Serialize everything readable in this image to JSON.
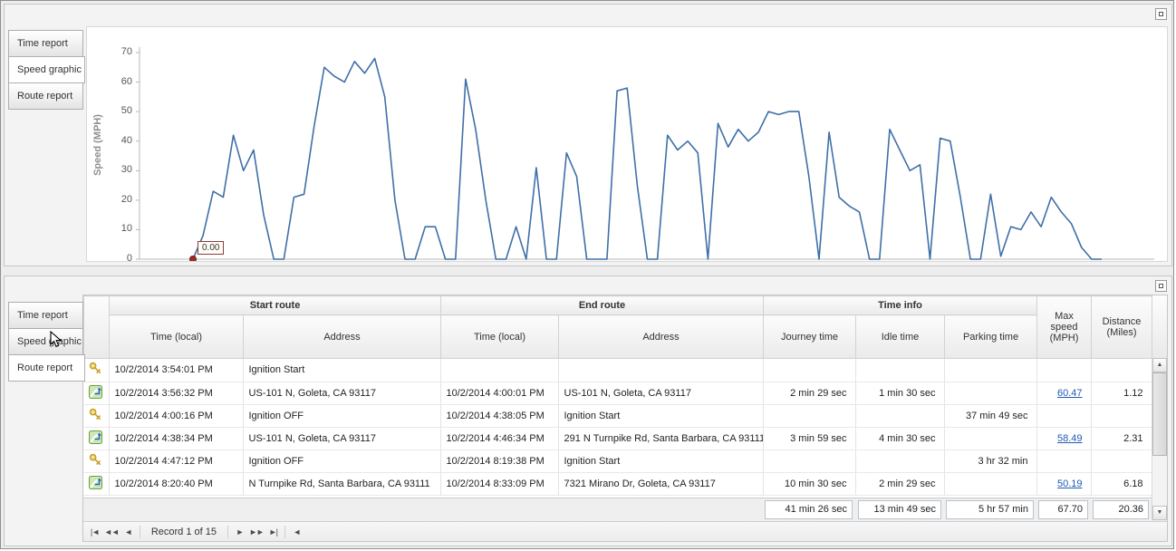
{
  "colors": {
    "chart_line": "#3f6fa8",
    "marker_red": "#9e2b25",
    "max_speed_link": "#1f5bb5"
  },
  "chart_data": {
    "type": "line",
    "title": "",
    "xlabel": "",
    "ylabel": "Speed (MPH)",
    "ylim": [
      0,
      70
    ],
    "yticks": [
      0,
      10,
      20,
      30,
      40,
      50,
      60,
      70
    ],
    "legend": "none",
    "grid": "off",
    "series": [
      {
        "name": "Speed",
        "color": "#3f6fa8",
        "values": [
          0,
          8,
          23,
          21,
          42,
          30,
          37,
          15,
          0,
          0,
          21,
          22,
          45,
          65,
          62,
          60,
          67,
          63,
          68,
          55,
          20,
          0,
          0,
          11,
          11,
          0,
          0,
          61,
          44,
          20,
          0,
          0,
          11,
          0,
          31,
          0,
          0,
          36,
          28,
          0,
          0,
          0,
          57,
          58,
          25,
          0,
          0,
          42,
          37,
          40,
          36,
          0,
          46,
          38,
          44,
          40,
          43,
          50,
          49,
          50,
          50,
          28,
          0,
          43,
          21,
          18,
          16,
          0,
          0,
          44,
          37,
          30,
          32,
          0,
          41,
          40,
          21,
          0,
          0,
          22,
          1,
          11,
          10,
          16,
          11,
          21,
          16,
          12,
          4,
          0,
          0
        ]
      }
    ],
    "annotation": {
      "label": "0.00",
      "point_index": 0,
      "marker_color": "#9e2b25"
    }
  },
  "top_panel": {
    "active_tab": "Speed graphic",
    "tabs": [
      {
        "label": "Time report"
      },
      {
        "label": "Speed graphic"
      },
      {
        "label": "Route report"
      }
    ]
  },
  "bottom_panel": {
    "active_tab": "Route report",
    "tabs": [
      {
        "label": "Time report"
      },
      {
        "label": "Speed graphic"
      },
      {
        "label": "Route report"
      }
    ],
    "grid": {
      "groups": [
        "Start route",
        "End route",
        "Time info"
      ],
      "columns": {
        "time_local": "Time (local)",
        "address": "Address",
        "journey": "Journey time",
        "idle": "Idle time",
        "parking": "Parking time",
        "max_speed": "Max speed (MPH)",
        "distance": "Distance (Miles)"
      },
      "rows": [
        {
          "icon": "key",
          "start_time": "10/2/2014 3:54:01 PM",
          "start_address": "Ignition Start",
          "end_time": "",
          "end_address": "",
          "journey": "",
          "idle": "",
          "parking": "",
          "max_speed": "",
          "distance": ""
        },
        {
          "icon": "route",
          "start_time": "10/2/2014 3:56:32 PM",
          "start_address": "US-101 N, Goleta, CA 93117",
          "end_time": "10/2/2014 4:00:01 PM",
          "end_address": "US-101 N, Goleta, CA 93117",
          "journey": "2 min 29 sec",
          "idle": "1 min 30 sec",
          "parking": "",
          "max_speed": "60.47",
          "distance": "1.12"
        },
        {
          "icon": "key",
          "start_time": "10/2/2014 4:00:16 PM",
          "start_address": "Ignition OFF",
          "end_time": "10/2/2014 4:38:05 PM",
          "end_address": "Ignition Start",
          "journey": "",
          "idle": "",
          "parking": "37 min 49 sec",
          "max_speed": "",
          "distance": ""
        },
        {
          "icon": "route",
          "start_time": "10/2/2014 4:38:34 PM",
          "start_address": "US-101 N, Goleta, CA 93117",
          "end_time": "10/2/2014 4:46:34 PM",
          "end_address": "291 N Turnpike Rd, Santa Barbara, CA 93111",
          "journey": "3 min 59 sec",
          "idle": "4 min 30 sec",
          "parking": "",
          "max_speed": "58.49",
          "distance": "2.31"
        },
        {
          "icon": "key",
          "start_time": "10/2/2014 4:47:12 PM",
          "start_address": "Ignition OFF",
          "end_time": "10/2/2014 8:19:38 PM",
          "end_address": "Ignition Start",
          "journey": "",
          "idle": "",
          "parking": "3 hr 32 min",
          "max_speed": "",
          "distance": ""
        },
        {
          "icon": "route",
          "start_time": "10/2/2014 8:20:40 PM",
          "start_address": "N Turnpike Rd, Santa Barbara, CA 93111",
          "end_time": "10/2/2014 8:33:09 PM",
          "end_address": "7321 Mirano Dr, Goleta, CA 93117",
          "journey": "10 min 30 sec",
          "idle": "2 min 29 sec",
          "parking": "",
          "max_speed": "50.19",
          "distance": "6.18"
        }
      ],
      "summary": {
        "journey": "41 min 26 sec",
        "idle": "13 min 49 sec",
        "parking": "5 hr 57 min",
        "max_speed": "67.70",
        "distance": "20.36"
      },
      "navigator": {
        "label": "Record 1 of 15",
        "first": "|◄",
        "prev_page": "◄◄",
        "prev": "◄",
        "next": "►",
        "next_page": "►►",
        "last": "►|",
        "h_scroll_left": "◄"
      }
    }
  }
}
